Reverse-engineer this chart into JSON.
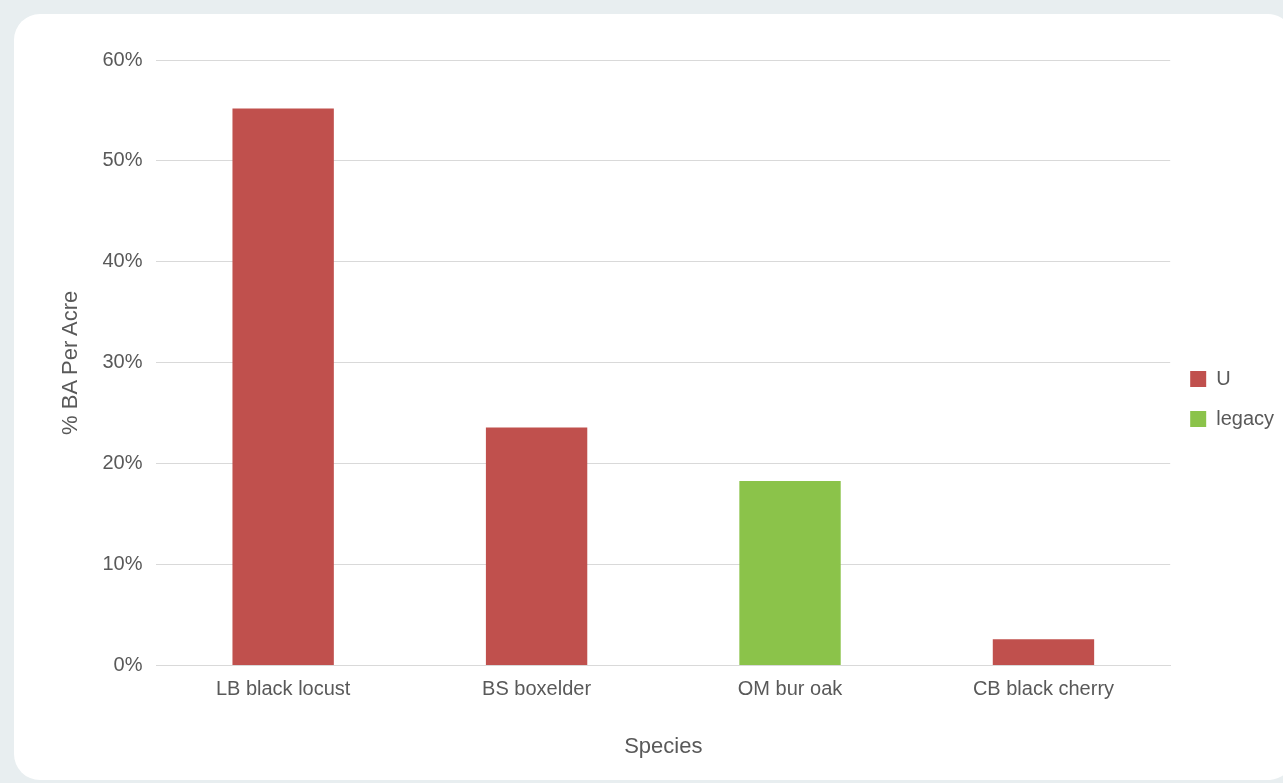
{
  "chart_data": {
    "type": "bar",
    "xlabel": "Species",
    "ylabel": "% BA Per Acre",
    "categories": [
      "LB black locust",
      "BS boxelder",
      "OM bur oak",
      "CB black cherry"
    ],
    "series": [
      {
        "name": "U",
        "color": "#c0504d",
        "values": [
          55.2,
          23.6,
          null,
          2.6
        ]
      },
      {
        "name": "legacy",
        "color": "#8bc34a",
        "values": [
          null,
          null,
          18.3,
          null
        ]
      }
    ],
    "ylim": [
      0,
      60
    ],
    "yticks": [
      {
        "value": 0,
        "label": "0%"
      },
      {
        "value": 10,
        "label": "10%"
      },
      {
        "value": 20,
        "label": "20%"
      },
      {
        "value": 30,
        "label": "30%"
      },
      {
        "value": 40,
        "label": "40%"
      },
      {
        "value": 50,
        "label": "50%"
      },
      {
        "value": 60,
        "label": "60%"
      }
    ],
    "grid": "y",
    "legend": "right"
  }
}
